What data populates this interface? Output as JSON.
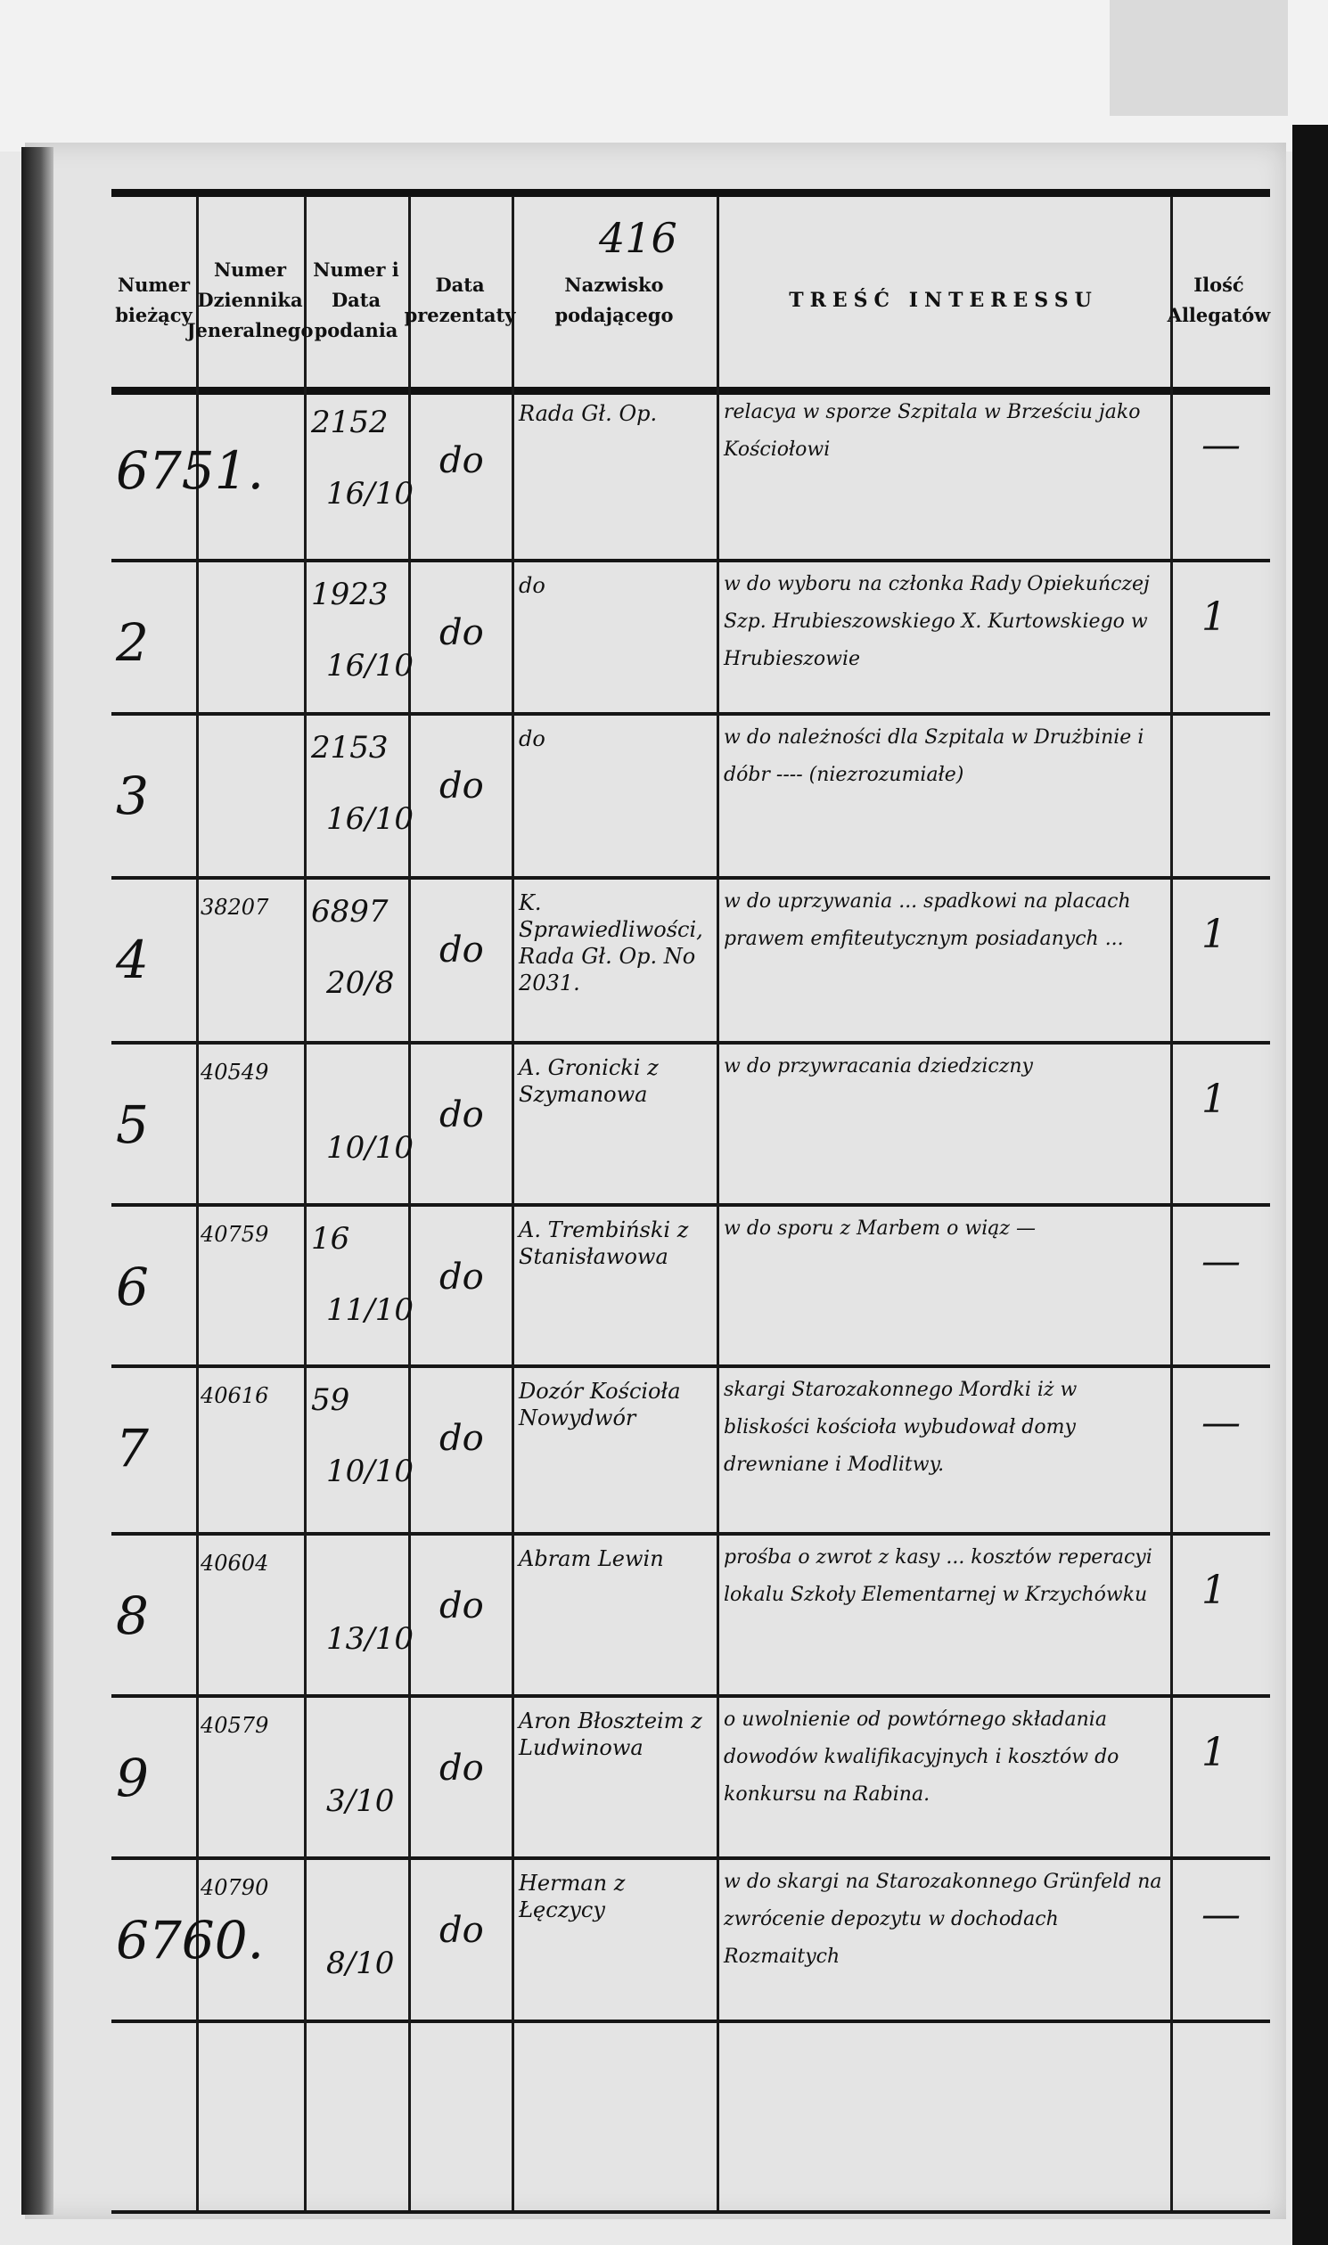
{
  "page_number": "416",
  "header": {
    "columns": [
      "Numer bieżący",
      "Numer Dziennika Jeneralnego",
      "Numer i Data podania",
      "Data prezentaty",
      "Nazwisko podającego",
      "TREŚĆ INTERESSU",
      "Ilość Allegatów"
    ]
  },
  "rows": [
    {
      "numer": "6751.",
      "dziennik": "",
      "numer_podania": "2152",
      "data_podania": "16/10",
      "data_prez": "do",
      "nazwisko": "Rada Gł. Op.",
      "tresc": "relacya w sporze Szpitala w Brześciu jako Kościołowi",
      "allegaty": "—"
    },
    {
      "numer": "2",
      "dziennik": "",
      "numer_podania": "1923",
      "data_podania": "16/10",
      "data_prez": "do",
      "nazwisko": "do",
      "tresc": "w do wyboru na członka Rady Opiekuńczej Szp. Hrubieszowskiego X. Kurtowskiego w Hrubieszowie",
      "allegaty": "1"
    },
    {
      "numer": "3",
      "dziennik": "",
      "numer_podania": "2153",
      "data_podania": "16/10",
      "data_prez": "do",
      "nazwisko": "do",
      "tresc": "w do należności dla Szpitala w Drużbinie i dóbr ---- (niezrozumiałe)",
      "allegaty": ""
    },
    {
      "numer": "4",
      "dziennik": "38207",
      "numer_podania": "6897",
      "data_podania": "20/8",
      "data_prez": "do",
      "nazwisko": "K. Sprawiedliwości, Rada Gł. Op. No 2031.",
      "tresc": "w do uprzywania ... spadkowi na placach prawem emfiteutycznym posiadanych ...",
      "allegaty": "1"
    },
    {
      "numer": "5",
      "dziennik": "40549",
      "numer_podania": "",
      "data_podania": "10/10",
      "data_prez": "do",
      "nazwisko": "A. Gronicki z Szymanowa",
      "tresc": "w do przywracania dziedziczny",
      "allegaty": "1"
    },
    {
      "numer": "6",
      "dziennik": "40759",
      "numer_podania": "16",
      "data_podania": "11/10",
      "data_prez": "do",
      "nazwisko": "A. Trembiński z Stanisławowa",
      "tresc": "w do sporu z Marbem o wiąz —",
      "allegaty": "—"
    },
    {
      "numer": "7",
      "dziennik": "40616",
      "numer_podania": "59",
      "data_podania": "10/10",
      "data_prez": "do",
      "nazwisko": "Dozór Kościoła Nowydwór",
      "tresc": "skargi Starozakonnego Mordki iż w bliskości kościoła wybudował domy drewniane i Modlitwy.",
      "allegaty": "—"
    },
    {
      "numer": "8",
      "dziennik": "40604",
      "numer_podania": "",
      "data_podania": "13/10",
      "data_prez": "do",
      "nazwisko": "Abram Lewin",
      "tresc": "prośba o zwrot z kasy ... kosztów reperacyi lokalu Szkoły Elementarnej w Krzychówku",
      "allegaty": "1"
    },
    {
      "numer": "9",
      "dziennik": "40579",
      "numer_podania": "",
      "data_podania": "3/10",
      "data_prez": "do",
      "nazwisko": "Aron Błoszteim z Ludwinowa",
      "tresc": "o uwolnienie od powtórnego składania dowodów kwalifikacyjnych i kosztów do konkursu na Rabina.",
      "allegaty": "1"
    },
    {
      "numer": "6760.",
      "dziennik": "40790",
      "numer_podania": "",
      "data_podania": "8/10",
      "data_prez": "do",
      "nazwisko": "Herman z Łęczycy",
      "tresc": "w do skargi na Starozakonnego Grünfeld na zwrócenie depozytu w dochodach Rozmaitych",
      "allegaty": "—"
    }
  ]
}
